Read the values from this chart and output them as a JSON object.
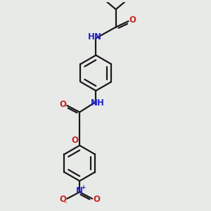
{
  "bg_color": "#e8eae8",
  "bond_color": "#1a1a1a",
  "N_color": "#2222cc",
  "O_color": "#cc2222",
  "lw": 1.6,
  "fig_size": [
    3.0,
    3.0
  ],
  "dpi": 100,
  "xlim": [
    -4,
    4
  ],
  "ylim": [
    -7,
    7
  ]
}
